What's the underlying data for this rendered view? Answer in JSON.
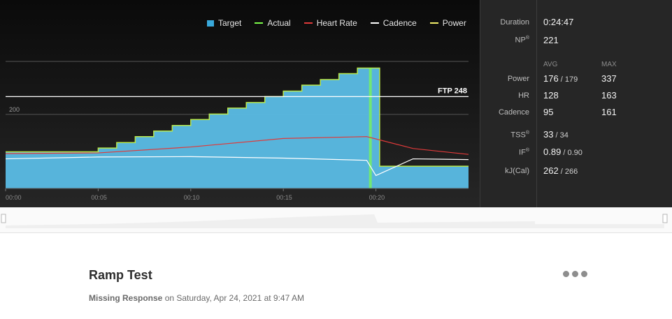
{
  "legend": [
    {
      "label": "Target",
      "color": "#39a9db",
      "kind": "box"
    },
    {
      "label": "Actual",
      "color": "#7cfc4a",
      "kind": "line"
    },
    {
      "label": "Heart Rate",
      "color": "#e03a3a",
      "kind": "line"
    },
    {
      "label": "Cadence",
      "color": "#ffffff",
      "kind": "line"
    },
    {
      "label": "Power",
      "color": "#f2ee6a",
      "kind": "line"
    }
  ],
  "chart": {
    "ftp_label": "FTP 248",
    "gridline_label": "200",
    "x_ticks": [
      "00:00",
      "00:05",
      "00:10",
      "00:15",
      "00:20"
    ]
  },
  "chart_data": {
    "type": "area",
    "x_unit": "minutes",
    "xlim": [
      0,
      25
    ],
    "ylim": [
      0,
      343
    ],
    "ftp": 248,
    "target_steps": {
      "x": [
        0,
        5,
        6,
        7,
        8,
        9,
        10,
        11,
        12,
        13,
        14,
        15,
        16,
        17,
        18,
        19,
        19.7,
        20.2
      ],
      "values": [
        99,
        109,
        124,
        140,
        155,
        170,
        186,
        201,
        217,
        232,
        248,
        263,
        279,
        294,
        310,
        325,
        325,
        60
      ]
    },
    "heart_rate_trend": {
      "x": [
        0,
        5,
        10,
        15,
        19.5,
        19.9,
        22,
        25
      ],
      "values": [
        94,
        96,
        112,
        135,
        140,
        135,
        108,
        92
      ]
    },
    "cadence_trend": {
      "x": [
        0,
        5,
        10,
        15,
        19.5,
        20,
        22,
        25
      ],
      "values": [
        80,
        85,
        86,
        82,
        76,
        35,
        80,
        78
      ]
    }
  },
  "stats": {
    "duration_label": "Duration",
    "duration_value": "0:24:47",
    "np_label": "NP",
    "np_sup": "®",
    "np_value": "221",
    "avg_head": "AVG",
    "max_head": "MAX",
    "power_label": "Power",
    "power_avg": "176",
    "power_avg_alt": " / 179",
    "power_max": "337",
    "hr_label": "HR",
    "hr_avg": "128",
    "hr_max": "163",
    "cadence_label": "Cadence",
    "cadence_avg": "95",
    "cadence_max": "161",
    "tss_label": "TSS",
    "tss_sup": "®",
    "tss_value": "33",
    "tss_alt": " / 34",
    "if_label": "IF",
    "if_sup": "®",
    "if_value": "0.89",
    "if_alt": " / 0.90",
    "kj_label": "kJ(Cal)",
    "kj_value": "262",
    "kj_alt": " / 266"
  },
  "workout": {
    "title": "Ramp Test",
    "author": "Missing Response",
    "date_text": " on Saturday, Apr 24, 2021 at 9:47 AM"
  }
}
